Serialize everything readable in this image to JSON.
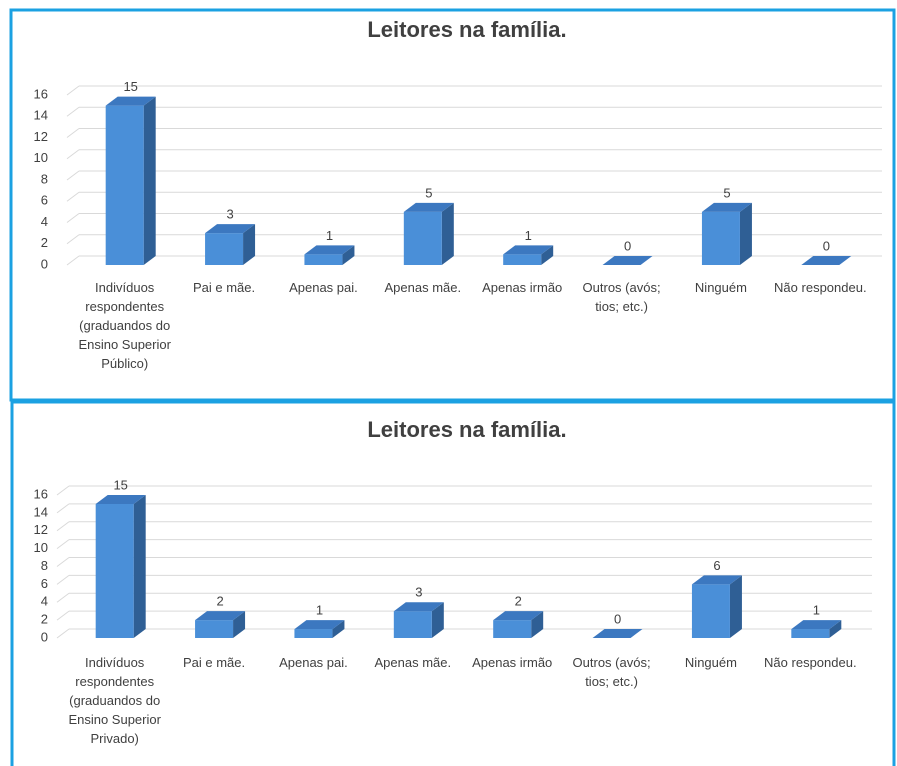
{
  "chart_data": [
    {
      "type": "bar3d",
      "title": "Leitores na família.",
      "categories": [
        "Indivíduos respondentes (graduandos do Ensino Superior Público)",
        "Pai e mãe.",
        "Apenas pai.",
        "Apenas mãe.",
        "Apenas irmão",
        "Outros (avós; tios; etc.)",
        "Ninguém",
        "Não respondeu."
      ],
      "values": [
        15,
        3,
        1,
        5,
        1,
        0,
        5,
        0
      ],
      "color": "#4a8fd8",
      "ylim": [
        0,
        16
      ],
      "yticks": [
        0,
        2,
        4,
        6,
        8,
        10,
        12,
        14,
        16
      ],
      "grid": true
    },
    {
      "type": "bar3d",
      "title": "Leitores na família.",
      "categories": [
        "Indivíduos respondentes (graduandos do Ensino Superior Privado)",
        "Pai e mãe.",
        "Apenas pai.",
        "Apenas mãe.",
        "Apenas irmão",
        "Outros (avós; tios; etc.)",
        "Ninguém",
        "Não respondeu."
      ],
      "values": [
        15,
        2,
        1,
        3,
        2,
        0,
        6,
        1
      ],
      "color": "#4a8fd8",
      "ylim": [
        0,
        16
      ],
      "yticks": [
        0,
        2,
        4,
        6,
        8,
        10,
        12,
        14,
        16
      ],
      "grid": true
    }
  ]
}
